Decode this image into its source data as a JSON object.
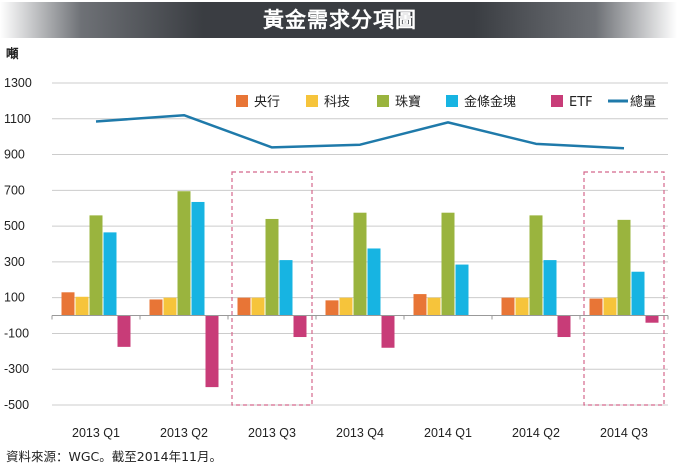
{
  "colors": {
    "header_bg": "#3a3d42",
    "title_text": "#ffffff",
    "central_bank": "#e87536",
    "technology": "#f6c43b",
    "jewelry": "#9ab43e",
    "bar_investment": "#17b4e2",
    "etf": "#c83c78",
    "total": "#1f7aaa",
    "highlight_box": "#d4688c",
    "grid": "#cccccc"
  },
  "chart_data": {
    "type": "bar",
    "title": "黃金需求分項圖",
    "ylabel": "噸",
    "xlabel": "",
    "ylim": [
      -500,
      1300
    ],
    "yticks": [
      1300,
      1100,
      900,
      700,
      500,
      300,
      100,
      -100,
      -300,
      -500
    ],
    "grid": true,
    "legend_position": "top",
    "categories": [
      "2013 Q1",
      "2013 Q2",
      "2013 Q3",
      "2013 Q4",
      "2014 Q1",
      "2014 Q2",
      "2014 Q3"
    ],
    "highlighted_categories": [
      "2013 Q3",
      "2014 Q3"
    ],
    "series": [
      {
        "name": "央行",
        "type": "bar",
        "color_key": "central_bank",
        "values": [
          130,
          90,
          100,
          85,
          120,
          100,
          95
        ]
      },
      {
        "name": "科技",
        "type": "bar",
        "color_key": "technology",
        "values": [
          105,
          100,
          100,
          100,
          100,
          100,
          100
        ]
      },
      {
        "name": "珠寶",
        "type": "bar",
        "color_key": "jewelry",
        "values": [
          560,
          695,
          540,
          575,
          575,
          560,
          535
        ]
      },
      {
        "name": "金條金塊",
        "type": "bar",
        "color_key": "bar_investment",
        "values": [
          465,
          635,
          310,
          375,
          285,
          310,
          245
        ]
      },
      {
        "name": "ETF",
        "type": "bar",
        "color_key": "etf",
        "values": [
          -175,
          -400,
          -120,
          -180,
          0,
          -120,
          -40
        ]
      },
      {
        "name": "總量",
        "type": "line",
        "color_key": "total",
        "values": [
          1085,
          1120,
          940,
          955,
          1080,
          960,
          935
        ]
      }
    ]
  },
  "footer": {
    "source": "資料來源：WGC。截至2014年11月。"
  }
}
